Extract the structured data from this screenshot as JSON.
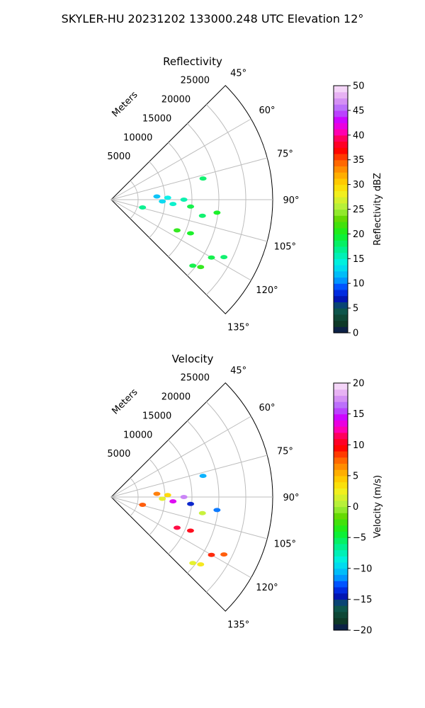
{
  "suptitle": "SKYLER-HU  20231202  133000.248 UTC Elevation 12°",
  "chart_data": [
    {
      "type": "heatmap",
      "projection": "polar-sector",
      "title": "Reflectivity",
      "radial_label": "Meters",
      "radial_ticks": [
        5000,
        10000,
        15000,
        20000,
        25000
      ],
      "radial_range": [
        0,
        30000
      ],
      "azimuth_range": [
        45,
        135
      ],
      "azimuth_ticks": [
        "45°",
        "60°",
        "75°",
        "90°",
        "105°",
        "120°",
        "135°"
      ],
      "grid": true,
      "colorbar": {
        "label": "Reflectivity dBZ",
        "range": [
          0,
          50
        ],
        "ticks": [
          0,
          5,
          10,
          15,
          20,
          25,
          30,
          35,
          40,
          45,
          50
        ]
      },
      "echoes": [
        {
          "az": 77,
          "r": 17500,
          "value": 18
        },
        {
          "az": 86,
          "r": 8500,
          "value": 12
        },
        {
          "az": 88,
          "r": 10500,
          "value": 14
        },
        {
          "az": 92,
          "r": 9500,
          "value": 13
        },
        {
          "az": 94,
          "r": 11500,
          "value": 15
        },
        {
          "az": 90,
          "r": 13500,
          "value": 16
        },
        {
          "az": 95,
          "r": 14800,
          "value": 19
        },
        {
          "az": 97,
          "r": 19800,
          "value": 20
        },
        {
          "az": 100,
          "r": 17200,
          "value": 18
        },
        {
          "az": 104,
          "r": 6000,
          "value": 17
        },
        {
          "az": 115,
          "r": 13500,
          "value": 21
        },
        {
          "az": 113,
          "r": 16000,
          "value": 20
        },
        {
          "az": 120,
          "r": 21500,
          "value": 19
        },
        {
          "az": 117,
          "r": 23500,
          "value": 18
        },
        {
          "az": 127,
          "r": 20800,
          "value": 21
        },
        {
          "az": 129,
          "r": 19500,
          "value": 19
        }
      ]
    },
    {
      "type": "heatmap",
      "projection": "polar-sector",
      "title": "Velocity",
      "radial_label": "Meters",
      "radial_ticks": [
        5000,
        10000,
        15000,
        20000,
        25000
      ],
      "radial_range": [
        0,
        30000
      ],
      "azimuth_range": [
        45,
        135
      ],
      "azimuth_ticks": [
        "45°",
        "60°",
        "75°",
        "90°",
        "105°",
        "120°",
        "135°"
      ],
      "grid": true,
      "colorbar": {
        "label": "Velocity (m/s)",
        "range": [
          -20,
          20
        ],
        "ticks": [
          -20,
          -15,
          -10,
          -5,
          0,
          5,
          10,
          15,
          20
        ]
      },
      "echoes": [
        {
          "az": 77,
          "r": 17500,
          "value": -11
        },
        {
          "az": 86,
          "r": 8500,
          "value": 7
        },
        {
          "az": 88,
          "r": 10500,
          "value": 4
        },
        {
          "az": 92,
          "r": 9500,
          "value": 2
        },
        {
          "az": 94,
          "r": 11500,
          "value": 14
        },
        {
          "az": 90,
          "r": 13500,
          "value": 17
        },
        {
          "az": 95,
          "r": 14800,
          "value": -14
        },
        {
          "az": 97,
          "r": 19800,
          "value": -12
        },
        {
          "az": 100,
          "r": 17200,
          "value": 1
        },
        {
          "az": 104,
          "r": 6000,
          "value": 8
        },
        {
          "az": 115,
          "r": 13500,
          "value": 11
        },
        {
          "az": 113,
          "r": 16000,
          "value": 10
        },
        {
          "az": 120,
          "r": 21500,
          "value": 9
        },
        {
          "az": 117,
          "r": 23500,
          "value": 8
        },
        {
          "az": 127,
          "r": 20800,
          "value": 3
        },
        {
          "az": 129,
          "r": 19500,
          "value": 2
        }
      ]
    }
  ]
}
